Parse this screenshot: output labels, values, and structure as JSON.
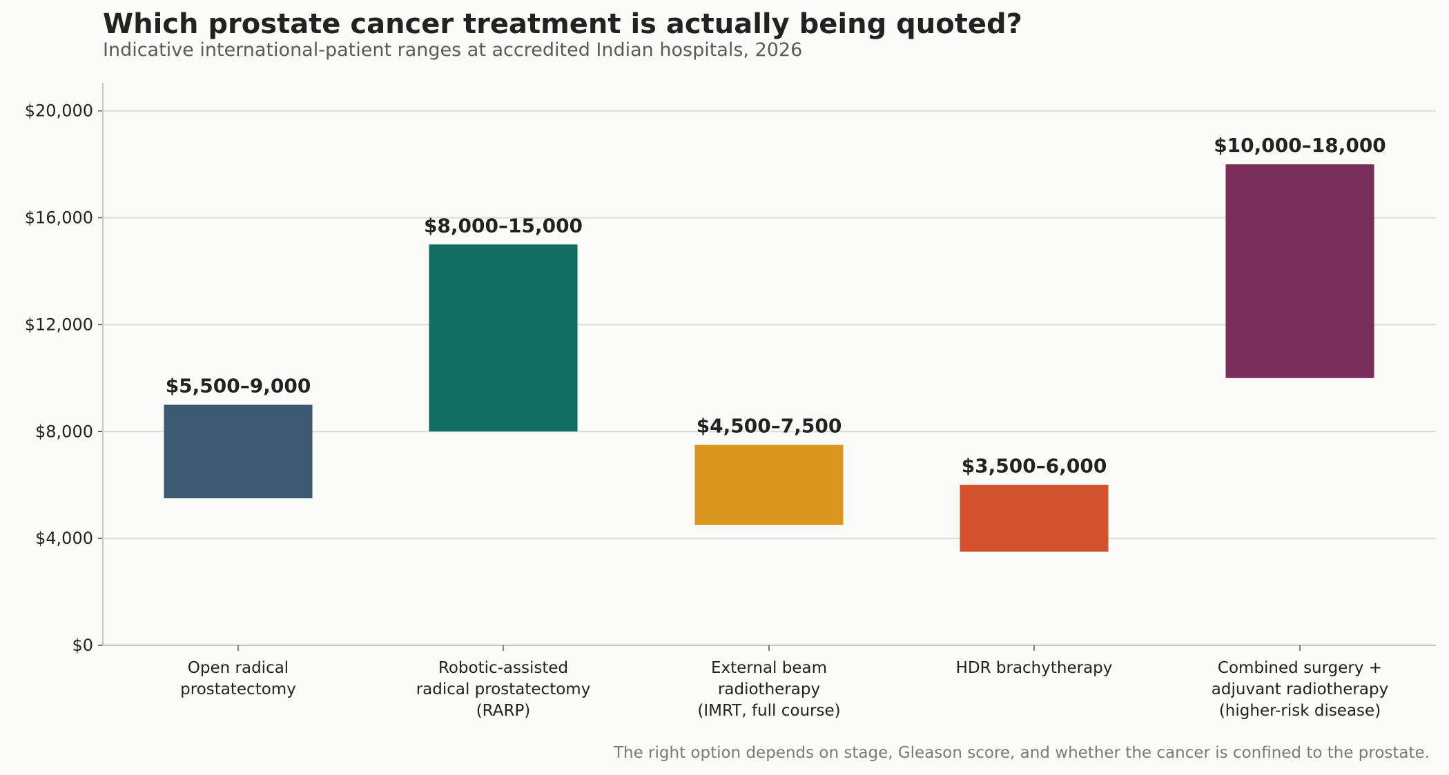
{
  "header": {
    "title": "Which prostate cancer treatment is actually being quoted?",
    "subtitle": "Indicative international-patient ranges at accredited Indian hospitals, 2026"
  },
  "footnote": "The right option depends on stage, Gleason score, and whether the cancer is confined to the prostate.",
  "chart_data": {
    "type": "bar",
    "subtype": "floating-range",
    "title": "Which prostate cancer treatment is actually being quoted?",
    "subtitle": "Indicative international-patient ranges at accredited Indian hospitals, 2026",
    "xlabel": "",
    "ylabel": "",
    "ylim": [
      0,
      21000
    ],
    "yticks": [
      0,
      4000,
      8000,
      12000,
      16000,
      20000
    ],
    "ytick_labels": [
      "$0",
      "$4,000",
      "$8,000",
      "$12,000",
      "$16,000",
      "$20,000"
    ],
    "grid": "horizontal",
    "legend": "none",
    "categories": [
      [
        "Open radical",
        "prostatectomy"
      ],
      [
        "Robotic-assisted",
        "radical prostatectomy",
        "(RARP)"
      ],
      [
        "External beam",
        "radiotherapy",
        "(IMRT, full course)"
      ],
      [
        "HDR brachytherapy"
      ],
      [
        "Combined surgery +",
        "adjuvant radiotherapy",
        "(higher-risk disease)"
      ]
    ],
    "low": [
      5500,
      8000,
      4500,
      3500,
      10000
    ],
    "high": [
      9000,
      15000,
      7500,
      6000,
      18000
    ],
    "data_labels": [
      "$5,500–9,000",
      "$8,000–15,000",
      "$4,500–7,500",
      "$3,500–6,000",
      "$10,000–18,000"
    ],
    "colors": [
      "#3d5a73",
      "#0f6e5f",
      "#d8981f",
      "#d3522e",
      "#7a2d58"
    ]
  }
}
